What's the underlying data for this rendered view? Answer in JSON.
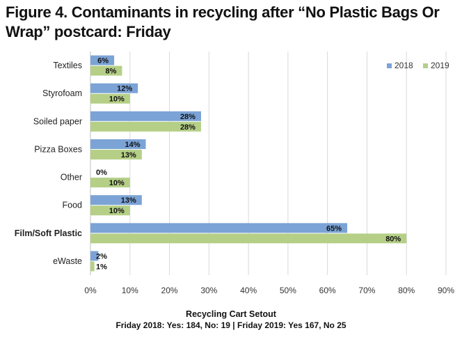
{
  "chart_data": {
    "type": "bar",
    "orientation": "horizontal",
    "title": "Figure 4. Contaminants in recycling after “No Plastic Bags Or Wrap” postcard: Friday",
    "categories": [
      "Textiles",
      "Styrofoam",
      "Soiled paper",
      "Pizza Boxes",
      "Other",
      "Food",
      "Film/Soft Plastic",
      "eWaste"
    ],
    "series": [
      {
        "name": "2018",
        "color": "#7ba3d6",
        "values": [
          6,
          12,
          28,
          14,
          0,
          13,
          65,
          2
        ],
        "labels": [
          "6%",
          "12%",
          "28%",
          "14%",
          "0%",
          "13%",
          "65%",
          "2%"
        ]
      },
      {
        "name": "2019",
        "color": "#b5cf87",
        "values": [
          8,
          10,
          28,
          13,
          10,
          10,
          80,
          1
        ],
        "labels": [
          "8%",
          "10%",
          "28%",
          "13%",
          "10%",
          "10%",
          "80%",
          "1%"
        ]
      }
    ],
    "xlim": [
      0,
      90
    ],
    "xticks": [
      "0%",
      "10%",
      "20%",
      "30%",
      "40%",
      "50%",
      "60%",
      "70%",
      "80%",
      "90%"
    ],
    "xlabel": "Recycling Cart Setout",
    "xlabel_sub": "Friday 2018: Yes: 184, No: 19  |  Friday 2019: Yes 167, No 25",
    "bold_category": "Film/Soft Plastic",
    "grid": true,
    "legend_position": "top-right"
  }
}
